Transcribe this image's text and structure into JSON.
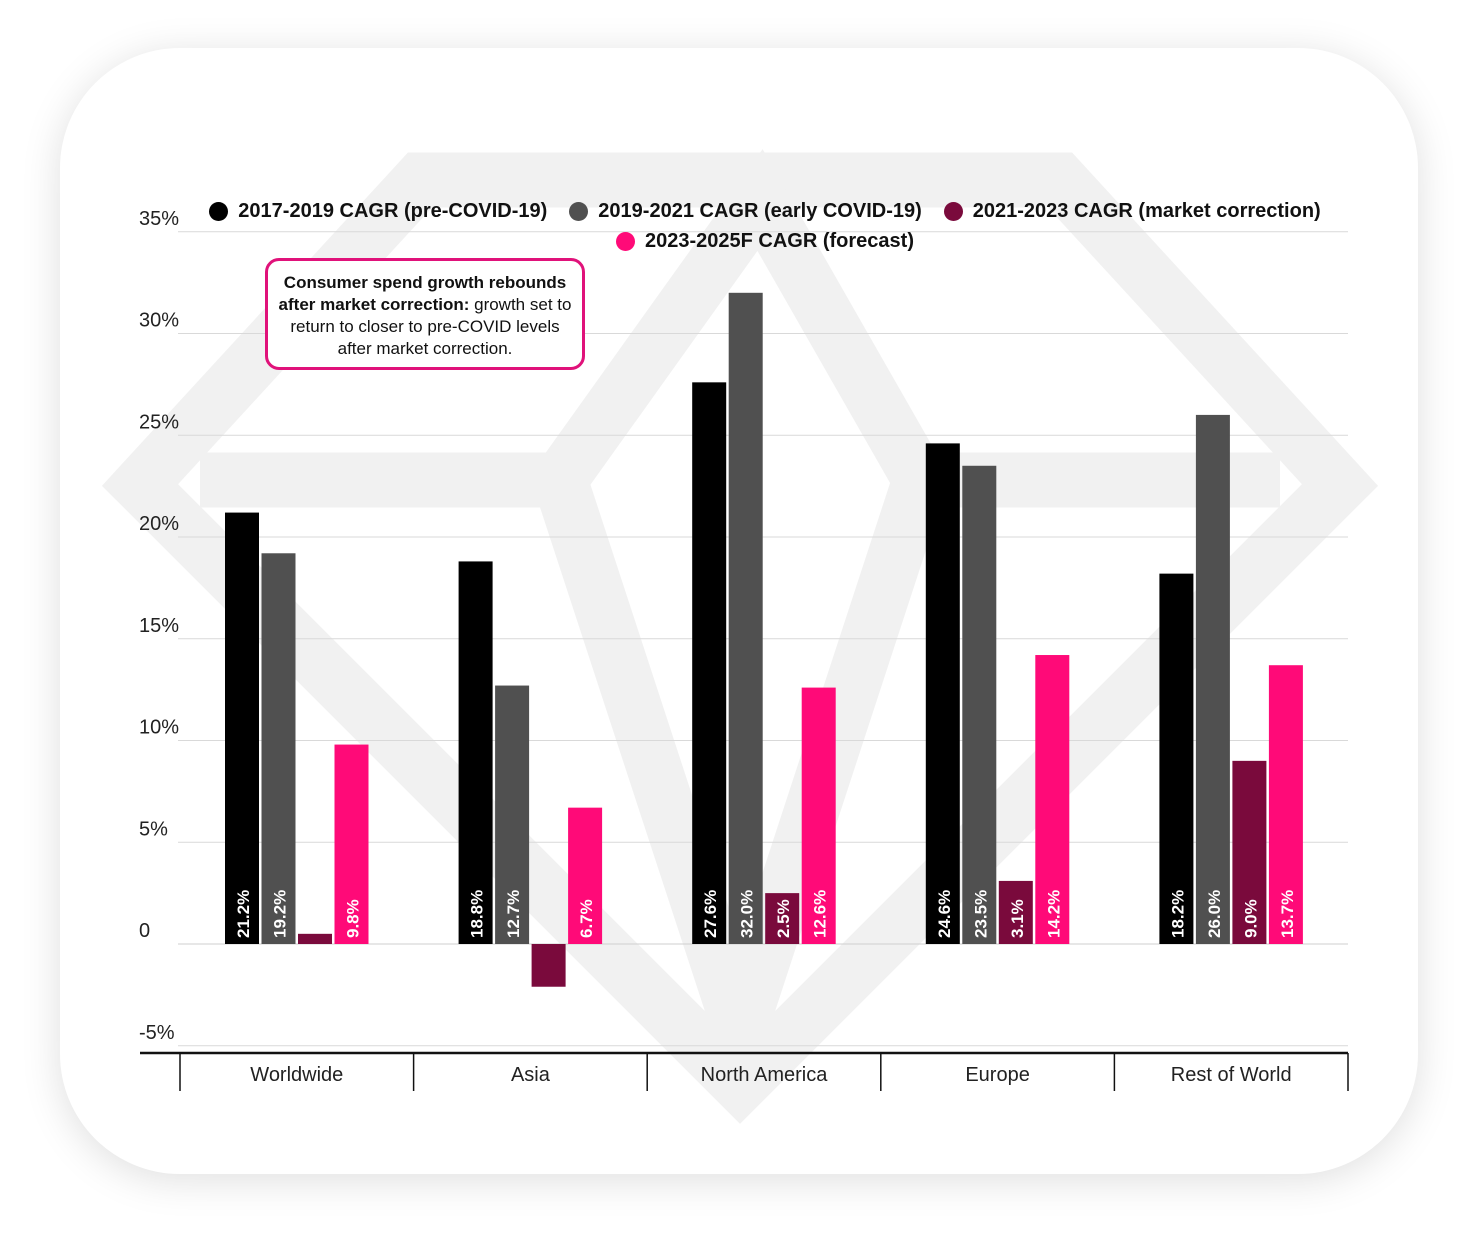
{
  "chart_data": {
    "type": "bar",
    "categories": [
      "Worldwide",
      "Asia",
      "North America",
      "Europe",
      "Rest of World"
    ],
    "series": [
      {
        "name": "2017-2019 CAGR (pre-COVID-19)",
        "color": "#000000",
        "values": [
          21.2,
          18.8,
          27.6,
          24.6,
          18.2
        ],
        "labels": [
          "21.2%",
          "18.8%",
          "27.6%",
          "24.6%",
          "18.2%"
        ]
      },
      {
        "name": "2019-2021 CAGR (early COVID-19)",
        "color": "#505050",
        "values": [
          19.2,
          12.7,
          32.0,
          23.5,
          26.0
        ],
        "labels": [
          "19.2%",
          "12.7%",
          "32.0%",
          "23.5%",
          "26.0%"
        ]
      },
      {
        "name": "2021-2023 CAGR (market correction)",
        "color": "#7a0a3c",
        "values": [
          0.5,
          -2.1,
          2.5,
          3.1,
          9.0
        ],
        "labels": [
          "",
          "",
          "2.5%",
          "3.1%",
          "9.0%"
        ]
      },
      {
        "name": "2023-2025F CAGR (forecast)",
        "color": "#ff0a78",
        "values": [
          9.8,
          6.7,
          12.6,
          14.2,
          13.7
        ],
        "labels": [
          "9.8%",
          "6.7%",
          "12.6%",
          "14.2%",
          "13.7%"
        ]
      }
    ],
    "yticks": [
      {
        "value": 35,
        "label": "35%"
      },
      {
        "value": 30,
        "label": "30%"
      },
      {
        "value": 25,
        "label": "25%"
      },
      {
        "value": 20,
        "label": "20%"
      },
      {
        "value": 15,
        "label": "15%"
      },
      {
        "value": 10,
        "label": "10%"
      },
      {
        "value": 5,
        "label": "5%"
      },
      {
        "value": 0,
        "label": "0"
      },
      {
        "value": -5,
        "label": "-5%"
      }
    ],
    "ylim": [
      -5,
      35
    ],
    "grid": true,
    "legend_position": "top",
    "annotation": {
      "bold": "Consumer spend growth rebounds after market correction:",
      "text": " growth set to return to closer to pre-COVID levels after market correction."
    },
    "title": "",
    "xlabel": "",
    "ylabel": ""
  }
}
